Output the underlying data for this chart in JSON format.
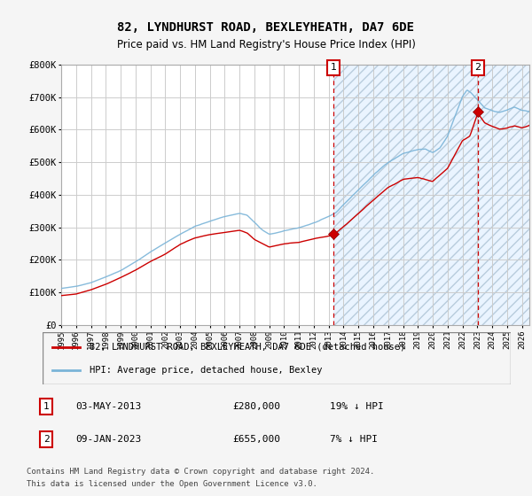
{
  "title": "82, LYNDHURST ROAD, BEXLEYHEATH, DA7 6DE",
  "subtitle": "Price paid vs. HM Land Registry's House Price Index (HPI)",
  "ylim": [
    0,
    800000
  ],
  "yticks": [
    0,
    100000,
    200000,
    300000,
    400000,
    500000,
    600000,
    700000,
    800000
  ],
  "ytick_labels": [
    "£0",
    "£100K",
    "£200K",
    "£300K",
    "£400K",
    "£500K",
    "£600K",
    "£700K",
    "£800K"
  ],
  "hpi_color": "#7ab4d8",
  "price_color": "#cc0000",
  "bg_color": "#f5f5f5",
  "hatch_fill_color": "#ddeeff",
  "grid_color": "#cccccc",
  "legend_label_red": "82, LYNDHURST ROAD, BEXLEYHEATH, DA7 6DE (detached house)",
  "legend_label_blue": "HPI: Average price, detached house, Bexley",
  "sale1_label": "1",
  "sale1_date": "03-MAY-2013",
  "sale1_price": "£280,000",
  "sale1_hpi": "19% ↓ HPI",
  "sale1_x": 2013.33,
  "sale1_y": 280000,
  "sale2_label": "2",
  "sale2_date": "09-JAN-2023",
  "sale2_price": "£655,000",
  "sale2_hpi": "7% ↓ HPI",
  "sale2_x": 2023.03,
  "sale2_y": 655000,
  "footer_line1": "Contains HM Land Registry data © Crown copyright and database right 2024.",
  "footer_line2": "This data is licensed under the Open Government Licence v3.0.",
  "hatch_region_start": 2013.33,
  "xmin": 1995.0,
  "xmax": 2026.5,
  "title_fontsize": 10,
  "subtitle_fontsize": 8.5,
  "tick_fontsize": 6.5,
  "ytick_fontsize": 7.5,
  "legend_fontsize": 7.5,
  "table_fontsize": 8.0,
  "footer_fontsize": 6.5
}
